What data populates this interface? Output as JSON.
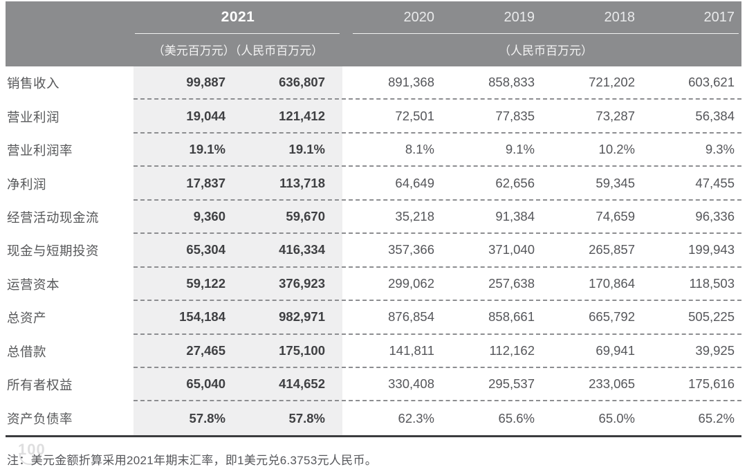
{
  "header": {
    "col_2021": "2021",
    "units_2021": "（美元百万元）（人民币百万元）",
    "years": [
      "2020",
      "2019",
      "2018",
      "2017"
    ],
    "units_rmb": "（人民币百万元）"
  },
  "rows": [
    {
      "label": "销售收入",
      "usd": "99,887",
      "rmb": "636,807",
      "y2020": "891,368",
      "y2019": "858,833",
      "y2018": "721,202",
      "y2017": "603,621"
    },
    {
      "label": "营业利润",
      "usd": "19,044",
      "rmb": "121,412",
      "y2020": "72,501",
      "y2019": "77,835",
      "y2018": "73,287",
      "y2017": "56,384"
    },
    {
      "label": "营业利润率",
      "usd": "19.1%",
      "rmb": "19.1%",
      "y2020": "8.1%",
      "y2019": "9.1%",
      "y2018": "10.2%",
      "y2017": "9.3%"
    },
    {
      "label": "净利润",
      "usd": "17,837",
      "rmb": "113,718",
      "y2020": "64,649",
      "y2019": "62,656",
      "y2018": "59,345",
      "y2017": "47,455"
    },
    {
      "label": "经营活动现金流",
      "usd": "9,360",
      "rmb": "59,670",
      "y2020": "35,218",
      "y2019": "91,384",
      "y2018": "74,659",
      "y2017": "96,336"
    },
    {
      "label": "现金与短期投资",
      "usd": "65,304",
      "rmb": "416,334",
      "y2020": "357,366",
      "y2019": "371,040",
      "y2018": "265,857",
      "y2017": "199,943"
    },
    {
      "label": "运营资本",
      "usd": "59,122",
      "rmb": "376,923",
      "y2020": "299,062",
      "y2019": "257,638",
      "y2018": "170,864",
      "y2017": "118,503"
    },
    {
      "label": "总资产",
      "usd": "154,184",
      "rmb": "982,971",
      "y2020": "876,854",
      "y2019": "858,661",
      "y2018": "665,792",
      "y2017": "505,225"
    },
    {
      "label": "总借款",
      "usd": "27,465",
      "rmb": "175,100",
      "y2020": "141,811",
      "y2019": "112,162",
      "y2018": "69,941",
      "y2017": "39,925"
    },
    {
      "label": "所有者权益",
      "usd": "65,040",
      "rmb": "414,652",
      "y2020": "330,408",
      "y2019": "295,537",
      "y2018": "233,065",
      "y2017": "175,616"
    },
    {
      "label": "资产负债率",
      "usd": "57.8%",
      "rmb": "57.8%",
      "y2020": "62.3%",
      "y2019": "65.6%",
      "y2018": "65.0%",
      "y2017": "65.2%"
    }
  ],
  "note": "注：美元金额折算采用2021年期末汇率，即1美元兑6.3753元人民币。",
  "watermark": "100",
  "colors": {
    "header_bg": "#8b8c8e",
    "highlight_col_bg": "#efeff0",
    "bold_number": "#3f4043",
    "regular_number": "#55565a",
    "bottom_rule": "#3b3c3e"
  }
}
